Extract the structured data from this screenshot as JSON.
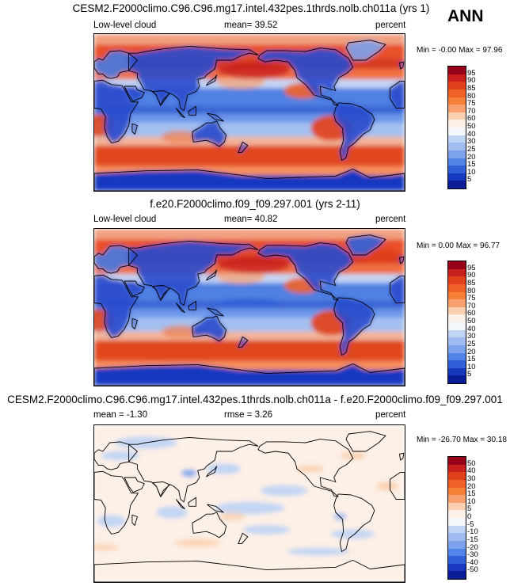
{
  "annual_label": "ANN",
  "panels": [
    {
      "title": "CESM2.F2000climo.C96.C96.mg17.intel.432pes.1thrds.nolb.ch011a (yrs 1)",
      "left_label": "Low-level cloud",
      "center_label": "mean=  39.52",
      "right_label": "percent",
      "minmax": "Min =  -0.00 Max =  97.96",
      "colorbar": {
        "labels": [
          "95",
          "90",
          "85",
          "80",
          "75",
          "70",
          "60",
          "50",
          "40",
          "30",
          "25",
          "20",
          "15",
          "10",
          "5"
        ],
        "colors": [
          "#960018",
          "#c81e1e",
          "#e0401c",
          "#ee6228",
          "#f78038",
          "#f8a070",
          "#fbd0b0",
          "#fdf0e6",
          "#f4f8fc",
          "#c0d4f4",
          "#a0bcf0",
          "#7ca2ec",
          "#5084e6",
          "#3060d8",
          "#1838c0",
          "#0a1c96"
        ]
      },
      "field_type": "cloud"
    },
    {
      "title": "f.e20.F2000climo.f09_f09.297.001 (yrs 2-11)",
      "left_label": "Low-level cloud",
      "center_label": "mean=  40.82",
      "right_label": "percent",
      "minmax": "Min =   0.00 Max =  96.77",
      "colorbar": {
        "labels": [
          "95",
          "90",
          "85",
          "80",
          "75",
          "70",
          "60",
          "50",
          "40",
          "30",
          "25",
          "20",
          "15",
          "10",
          "5"
        ],
        "colors": [
          "#960018",
          "#c81e1e",
          "#e0401c",
          "#ee6228",
          "#f78038",
          "#f8a070",
          "#fbd0b0",
          "#fdf0e6",
          "#f4f8fc",
          "#c0d4f4",
          "#a0bcf0",
          "#7ca2ec",
          "#5084e6",
          "#3060d8",
          "#1838c0",
          "#0a1c96"
        ]
      },
      "field_type": "cloud"
    },
    {
      "title": "CESM2.F2000climo.C96.C96.mg17.intel.432pes.1thrds.nolb.ch011a - f.e20.F2000climo.f09_f09.297.001",
      "left_label": "mean =  -1.30",
      "center_label": "rmse =   3.26",
      "right_label": "percent",
      "minmax": "Min = -26.70 Max =  30.18",
      "colorbar": {
        "labels": [
          "50",
          "40",
          "30",
          "20",
          "15",
          "10",
          "5",
          "0",
          "-5",
          "-10",
          "-15",
          "-20",
          "-30",
          "-40",
          "-50"
        ],
        "colors": [
          "#960018",
          "#c81e1e",
          "#e0401c",
          "#ee6228",
          "#f78038",
          "#f8a070",
          "#fbd0b0",
          "#fdf0e6",
          "#f4f8fc",
          "#c0d4f4",
          "#a0bcf0",
          "#7ca2ec",
          "#5084e6",
          "#3060d8",
          "#1838c0",
          "#0a1c96"
        ]
      },
      "field_type": "diff"
    }
  ]
}
